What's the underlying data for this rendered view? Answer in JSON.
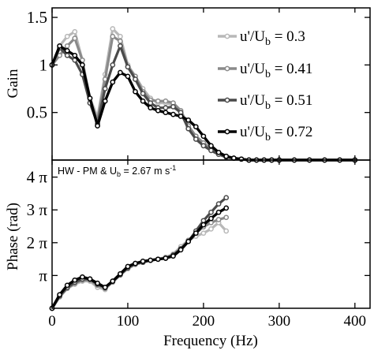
{
  "chart_data": [
    {
      "type": "line",
      "ylabel": "Gain",
      "xlim": [
        0,
        420
      ],
      "ylim": [
        0,
        1.6
      ],
      "y_ticks": [
        {
          "value": 0.5,
          "label": "0.5"
        },
        {
          "value": 1.0,
          "label": "1"
        },
        {
          "value": 1.5,
          "label": "1.5"
        }
      ],
      "legend": {
        "placement": "top-right",
        "entries": [
          {
            "prefix": "u'/U",
            "sub": "b",
            "suffix": " = 0.3",
            "color": "#b8b8b8"
          },
          {
            "prefix": "u'/U",
            "sub": "b",
            "suffix": " = 0.41",
            "color": "#8a8a8a"
          },
          {
            "prefix": "u'/U",
            "sub": "b",
            "suffix": " = 0.51",
            "color": "#4a4a4a"
          },
          {
            "prefix": "u'/U",
            "sub": "b",
            "suffix": " = 0.72",
            "color": "#000000"
          }
        ]
      },
      "series": [
        {
          "name": "u'/Ub = 0.3",
          "color": "#b8b8b8",
          "x": [
            0,
            10,
            20,
            30,
            40,
            50,
            60,
            70,
            80,
            90,
            100,
            110,
            120,
            130,
            140,
            150,
            160,
            170,
            180,
            190,
            200,
            210,
            220,
            230,
            240,
            250,
            260,
            270,
            280,
            290,
            300,
            320,
            340,
            360,
            380,
            400
          ],
          "y": [
            1.0,
            1.2,
            1.3,
            1.35,
            1.05,
            0.65,
            0.45,
            0.9,
            1.38,
            1.3,
            1.0,
            0.88,
            0.75,
            0.65,
            0.6,
            0.6,
            0.58,
            0.5,
            0.35,
            0.25,
            0.18,
            0.12,
            0.07,
            0.04,
            0.02,
            0.01,
            0.0,
            0.0,
            0.0,
            0.0,
            0.0,
            0.0,
            0.0,
            0.0,
            0.0,
            0.0
          ]
        },
        {
          "name": "u'/Ub = 0.41",
          "color": "#8a8a8a",
          "x": [
            0,
            10,
            20,
            30,
            40,
            50,
            60,
            70,
            80,
            90,
            100,
            110,
            120,
            130,
            140,
            150,
            160,
            170,
            180,
            190,
            200,
            210,
            220,
            230,
            240,
            250,
            260,
            270,
            280,
            290,
            300,
            320,
            340,
            360,
            380,
            400
          ],
          "y": [
            1.0,
            1.1,
            1.2,
            1.28,
            1.05,
            0.6,
            0.42,
            0.85,
            1.3,
            1.25,
            0.98,
            0.88,
            0.72,
            0.63,
            0.62,
            0.62,
            0.6,
            0.52,
            0.36,
            0.25,
            0.18,
            0.12,
            0.07,
            0.04,
            0.02,
            0.01,
            0.0,
            0.0,
            0.0,
            0.0,
            0.0,
            0.0,
            0.0,
            0.0,
            0.0,
            0.0
          ]
        },
        {
          "name": "u'/Ub = 0.51",
          "color": "#4a4a4a",
          "x": [
            0,
            10,
            20,
            30,
            40,
            50,
            60,
            70,
            80,
            90,
            100,
            110,
            120,
            130,
            140,
            150,
            160,
            170,
            180,
            190,
            200,
            210,
            220,
            230,
            240,
            250,
            260,
            270,
            280,
            290,
            300,
            320,
            340,
            360,
            380,
            400
          ],
          "y": [
            1.0,
            1.18,
            1.1,
            1.05,
            0.9,
            0.6,
            0.38,
            0.75,
            1.0,
            1.2,
            0.98,
            0.85,
            0.7,
            0.6,
            0.55,
            0.55,
            0.56,
            0.5,
            0.33,
            0.22,
            0.15,
            0.1,
            0.06,
            0.03,
            0.02,
            0.01,
            0.0,
            0.0,
            0.0,
            0.0,
            0.0,
            0.0,
            0.0,
            0.0,
            0.0,
            0.0
          ]
        },
        {
          "name": "u'/Ub = 0.72",
          "color": "#000000",
          "x": [
            0,
            10,
            20,
            30,
            40,
            50,
            60,
            70,
            80,
            90,
            100,
            110,
            120,
            130,
            140,
            150,
            160,
            170,
            180,
            190,
            200,
            210,
            220,
            230,
            240,
            250,
            260,
            270,
            280,
            290,
            300,
            320,
            340,
            360,
            380,
            400
          ],
          "y": [
            1.0,
            1.2,
            1.15,
            1.1,
            1.0,
            0.65,
            0.36,
            0.62,
            0.82,
            0.92,
            0.88,
            0.72,
            0.62,
            0.55,
            0.52,
            0.5,
            0.48,
            0.46,
            0.42,
            0.35,
            0.25,
            0.15,
            0.08,
            0.04,
            0.02,
            0.01,
            0.0,
            0.0,
            0.0,
            0.0,
            0.0,
            0.0,
            0.0,
            0.0,
            0.0,
            0.0
          ]
        }
      ]
    },
    {
      "type": "line",
      "xlabel": "Frequency (Hz)",
      "ylabel": "Phase (rad)",
      "xlim": [
        0,
        420
      ],
      "ylim": [
        0,
        14.2
      ],
      "annotation": {
        "prefix": "HW - PM & U",
        "sub": "b",
        "mid": " = 2.67 m s",
        "sup": "-1"
      },
      "x_ticks": [
        {
          "value": 0,
          "label": "0"
        },
        {
          "value": 100,
          "label": "100"
        },
        {
          "value": 200,
          "label": "200"
        },
        {
          "value": 300,
          "label": "300"
        },
        {
          "value": 400,
          "label": "400"
        }
      ],
      "y_ticks": [
        {
          "value": 3.1416,
          "label": "π"
        },
        {
          "value": 6.2832,
          "label": "2 π"
        },
        {
          "value": 9.4248,
          "label": "3 π"
        },
        {
          "value": 12.5664,
          "label": "4 π"
        }
      ],
      "series": [
        {
          "name": "u'/Ub = 0.3",
          "color": "#b8b8b8",
          "x": [
            0,
            10,
            20,
            30,
            40,
            50,
            60,
            70,
            80,
            90,
            100,
            110,
            120,
            130,
            140,
            150,
            160,
            170,
            180,
            190,
            200,
            210,
            220,
            230
          ],
          "y": [
            0.0,
            1.1,
            1.9,
            2.3,
            2.6,
            2.6,
            2.0,
            1.8,
            2.6,
            3.2,
            3.9,
            4.2,
            4.4,
            4.6,
            4.7,
            4.9,
            5.2,
            5.9,
            6.5,
            6.9,
            7.2,
            7.6,
            8.2,
            7.4
          ]
        },
        {
          "name": "u'/Ub = 0.41",
          "color": "#8a8a8a",
          "x": [
            0,
            10,
            20,
            30,
            40,
            50,
            60,
            70,
            80,
            90,
            100,
            110,
            120,
            130,
            140,
            150,
            160,
            170,
            180,
            190,
            200,
            210,
            220,
            230
          ],
          "y": [
            0.0,
            1.1,
            1.9,
            2.4,
            2.7,
            2.7,
            2.2,
            1.9,
            2.5,
            3.2,
            3.8,
            4.2,
            4.4,
            4.6,
            4.7,
            4.8,
            5.1,
            5.7,
            6.5,
            7.2,
            7.8,
            8.2,
            8.5,
            8.7
          ]
        },
        {
          "name": "u'/Ub = 0.51",
          "color": "#4a4a4a",
          "x": [
            0,
            10,
            20,
            30,
            40,
            50,
            60,
            70,
            80,
            90,
            100,
            110,
            120,
            130,
            140,
            150,
            160,
            170,
            180,
            190,
            200,
            210,
            220,
            230
          ],
          "y": [
            0.0,
            1.2,
            2.0,
            2.5,
            2.8,
            2.8,
            2.3,
            2.0,
            2.6,
            3.2,
            3.9,
            4.3,
            4.4,
            4.6,
            4.7,
            4.8,
            5.1,
            5.7,
            6.4,
            7.4,
            8.4,
            9.2,
            10.0,
            10.6
          ]
        },
        {
          "name": "u'/Ub = 0.72",
          "color": "#000000",
          "x": [
            0,
            10,
            20,
            30,
            40,
            50,
            60,
            70,
            80,
            90,
            100,
            110,
            120,
            130,
            140,
            150,
            160,
            170,
            180,
            190,
            200,
            210,
            220,
            230
          ],
          "y": [
            0.0,
            1.3,
            2.2,
            2.7,
            3.0,
            2.8,
            2.4,
            2.0,
            2.6,
            3.3,
            4.0,
            4.3,
            4.5,
            4.6,
            4.7,
            4.8,
            5.0,
            5.6,
            6.4,
            7.2,
            8.0,
            8.6,
            9.2,
            9.6
          ]
        }
      ]
    }
  ]
}
